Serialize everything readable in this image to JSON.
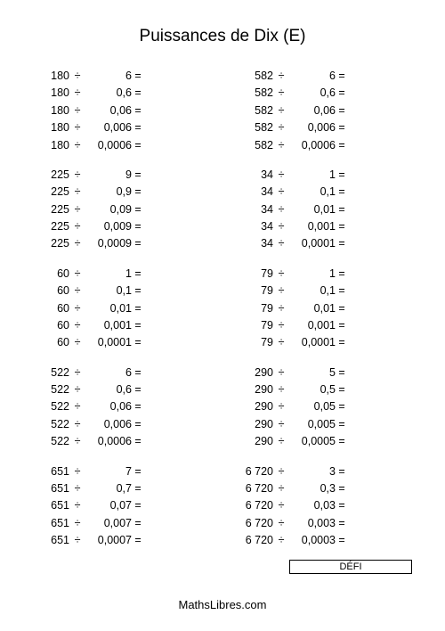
{
  "title": "Puissances de Dix (E)",
  "footer": "MathsLibres.com",
  "defi_label": "DÉFI",
  "op_symbol": "÷",
  "eq_symbol": "=",
  "left_groups": [
    {
      "rows": [
        {
          "d": "180",
          "v": "6"
        },
        {
          "d": "180",
          "v": "0,6"
        },
        {
          "d": "180",
          "v": "0,06"
        },
        {
          "d": "180",
          "v": "0,006"
        },
        {
          "d": "180",
          "v": "0,0006"
        }
      ]
    },
    {
      "rows": [
        {
          "d": "225",
          "v": "9"
        },
        {
          "d": "225",
          "v": "0,9"
        },
        {
          "d": "225",
          "v": "0,09"
        },
        {
          "d": "225",
          "v": "0,009"
        },
        {
          "d": "225",
          "v": "0,0009"
        }
      ]
    },
    {
      "rows": [
        {
          "d": "60",
          "v": "1"
        },
        {
          "d": "60",
          "v": "0,1"
        },
        {
          "d": "60",
          "v": "0,01"
        },
        {
          "d": "60",
          "v": "0,001"
        },
        {
          "d": "60",
          "v": "0,0001"
        }
      ]
    },
    {
      "rows": [
        {
          "d": "522",
          "v": "6"
        },
        {
          "d": "522",
          "v": "0,6"
        },
        {
          "d": "522",
          "v": "0,06"
        },
        {
          "d": "522",
          "v": "0,006"
        },
        {
          "d": "522",
          "v": "0,0006"
        }
      ]
    },
    {
      "rows": [
        {
          "d": "651",
          "v": "7"
        },
        {
          "d": "651",
          "v": "0,7"
        },
        {
          "d": "651",
          "v": "0,07"
        },
        {
          "d": "651",
          "v": "0,007"
        },
        {
          "d": "651",
          "v": "0,0007"
        }
      ]
    }
  ],
  "right_groups": [
    {
      "rows": [
        {
          "d": "582",
          "v": "6"
        },
        {
          "d": "582",
          "v": "0,6"
        },
        {
          "d": "582",
          "v": "0,06"
        },
        {
          "d": "582",
          "v": "0,006"
        },
        {
          "d": "582",
          "v": "0,0006"
        }
      ]
    },
    {
      "rows": [
        {
          "d": "34",
          "v": "1"
        },
        {
          "d": "34",
          "v": "0,1"
        },
        {
          "d": "34",
          "v": "0,01"
        },
        {
          "d": "34",
          "v": "0,001"
        },
        {
          "d": "34",
          "v": "0,0001"
        }
      ]
    },
    {
      "rows": [
        {
          "d": "79",
          "v": "1"
        },
        {
          "d": "79",
          "v": "0,1"
        },
        {
          "d": "79",
          "v": "0,01"
        },
        {
          "d": "79",
          "v": "0,001"
        },
        {
          "d": "79",
          "v": "0,0001"
        }
      ]
    },
    {
      "rows": [
        {
          "d": "290",
          "v": "5"
        },
        {
          "d": "290",
          "v": "0,5"
        },
        {
          "d": "290",
          "v": "0,05"
        },
        {
          "d": "290",
          "v": "0,005"
        },
        {
          "d": "290",
          "v": "0,0005"
        }
      ]
    },
    {
      "rows": [
        {
          "d": "6 720",
          "v": "3"
        },
        {
          "d": "6 720",
          "v": "0,3"
        },
        {
          "d": "6 720",
          "v": "0,03"
        },
        {
          "d": "6 720",
          "v": "0,003"
        },
        {
          "d": "6 720",
          "v": "0,0003"
        }
      ]
    }
  ]
}
